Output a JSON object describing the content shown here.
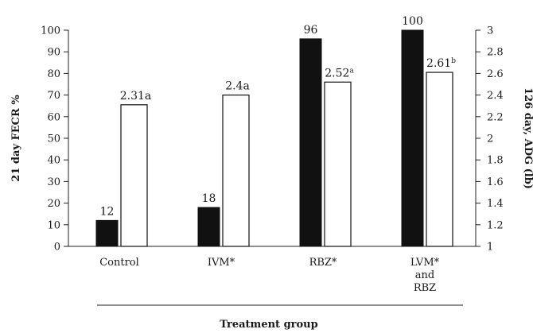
{
  "chart_data": {
    "type": "bar",
    "categories": [
      "Control",
      "IVM*",
      "RBZ*",
      "LVM*|and|RBZ"
    ],
    "series": [
      {
        "name": "",
        "axis": "left",
        "color": "#111111",
        "values": [
          12,
          18,
          96,
          100
        ],
        "labels": [
          "12",
          "18",
          "96",
          "100"
        ]
      },
      {
        "name": "",
        "axis": "right",
        "color": "#ffffff",
        "values": [
          2.31,
          2.4,
          2.52,
          2.61
        ],
        "labels": [
          "2.31a",
          "2.4a",
          "2.52",
          "2.61"
        ],
        "label_sup": [
          "",
          "",
          "a",
          "b"
        ]
      }
    ],
    "ylabel": "21 day FECR %",
    "y2label": "126 day, ADG (lb)",
    "xlabel": "Treatment group",
    "ylim": [
      0,
      100
    ],
    "y2lim": [
      1,
      3
    ],
    "yticks": [
      "0",
      "10",
      "20",
      "30",
      "40",
      "50",
      "60",
      "70",
      "80",
      "90",
      "100"
    ],
    "y2ticks": [
      "1",
      "1.2",
      "1.4",
      "1.6",
      "1.8",
      "2",
      "2.2",
      "2.4",
      "2.6",
      "2.8",
      "3"
    ],
    "grid": false,
    "legend": "none"
  }
}
